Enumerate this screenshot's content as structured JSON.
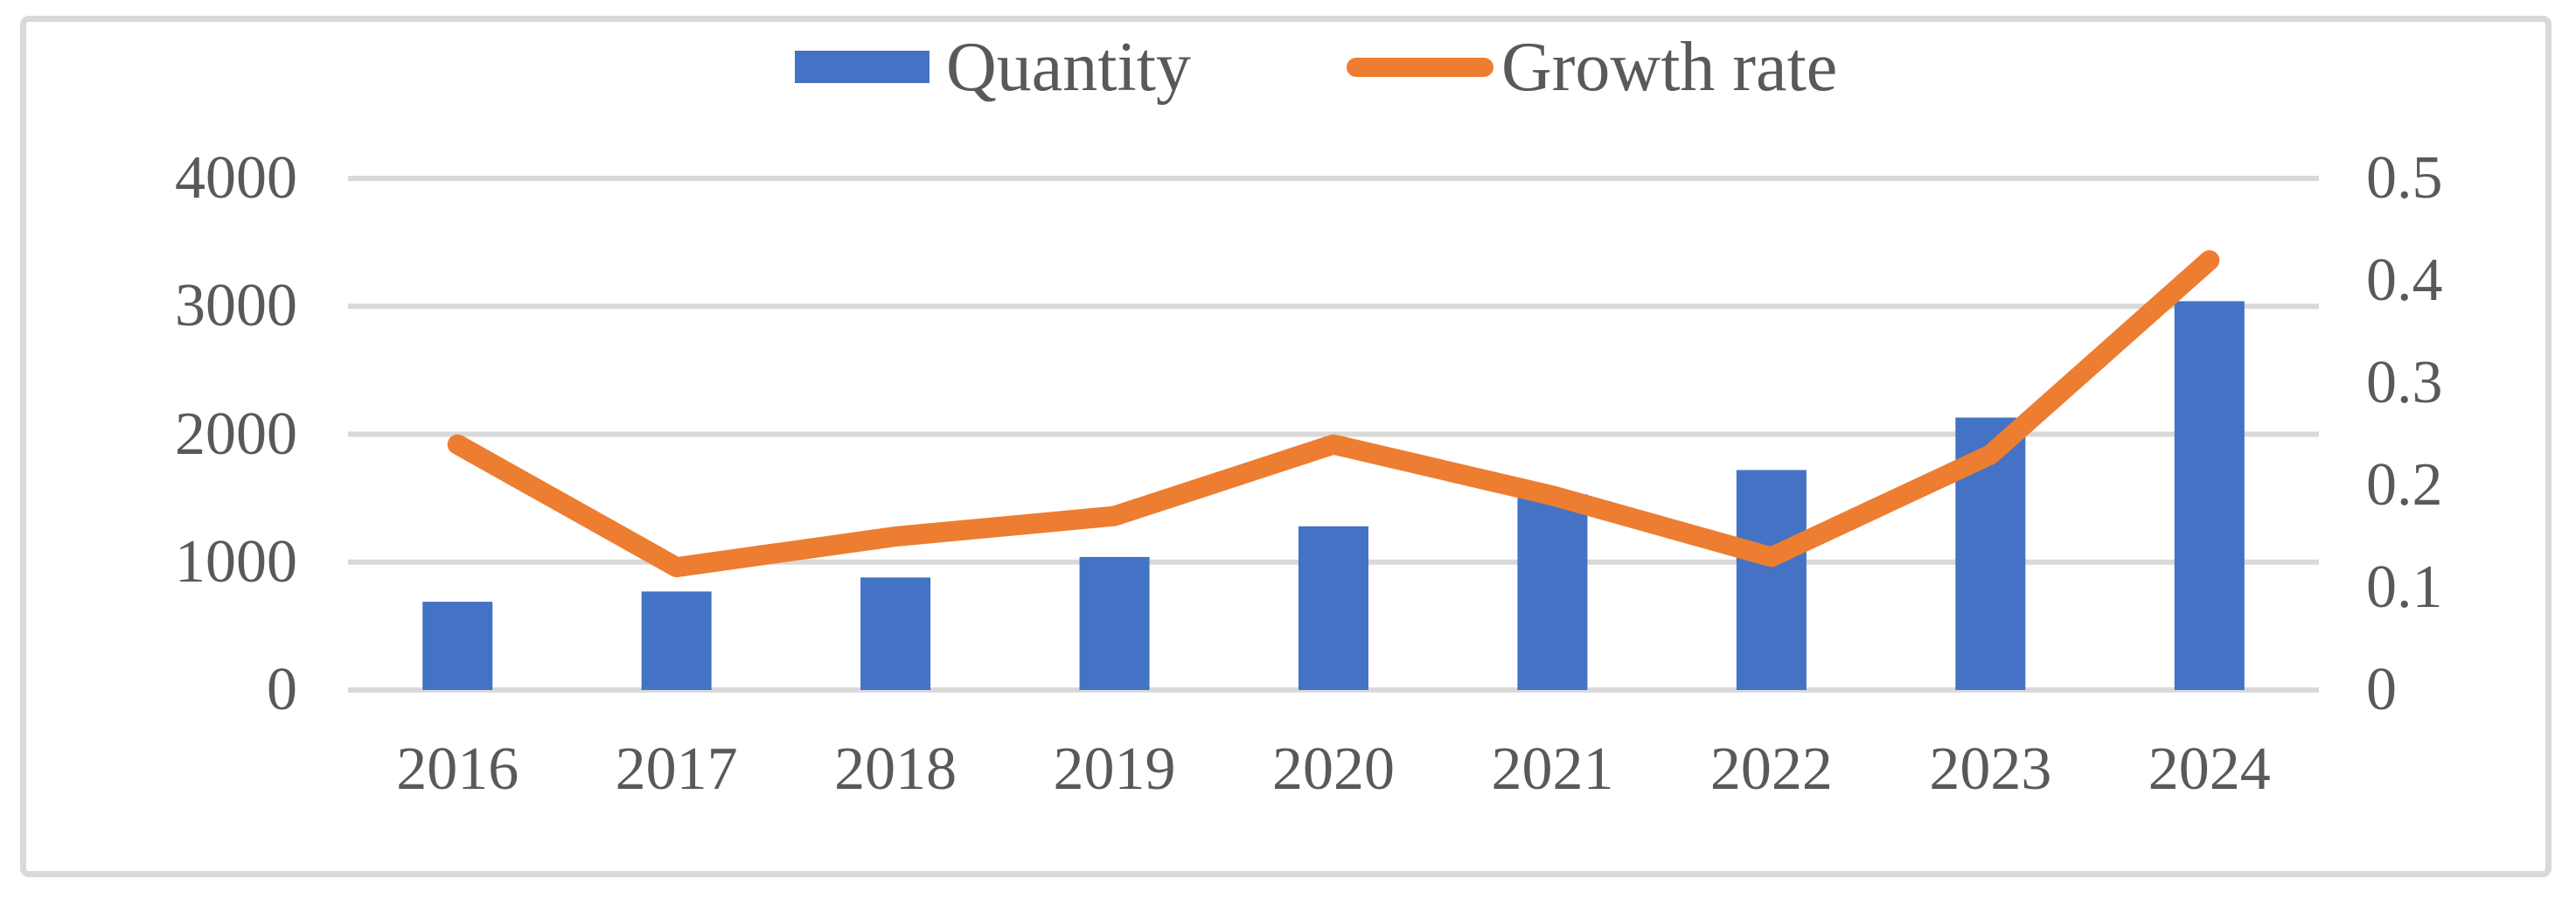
{
  "figure": {
    "background": "#FFFFFF",
    "border_color": "#D9D9D9",
    "text_color": "#595959",
    "grid_color": "#D9D9D9"
  },
  "legend": {
    "position": "top-center",
    "items": [
      {
        "label": "Quantity",
        "marker": "bar-swatch",
        "color": "#4472C4"
      },
      {
        "label": "Growth rate",
        "marker": "line-swatch",
        "color": "#ED7D31"
      }
    ]
  },
  "chart_data": {
    "type": "combo",
    "categories": [
      "2016",
      "2017",
      "2018",
      "2019",
      "2020",
      "2021",
      "2022",
      "2023",
      "2024"
    ],
    "series": [
      {
        "name": "Quantity",
        "type": "bar",
        "axis": "left",
        "color": "#4472C4",
        "values": [
          690,
          770,
          880,
          1040,
          1280,
          1530,
          1720,
          2130,
          3040
        ]
      },
      {
        "name": "Growth rate",
        "type": "line",
        "axis": "right",
        "color": "#ED7D31",
        "values": [
          0.24,
          0.12,
          0.15,
          0.17,
          0.24,
          0.19,
          0.13,
          0.23,
          0.42
        ]
      }
    ],
    "left_axis": {
      "range": [
        0,
        4000
      ],
      "ticks": [
        0,
        1000,
        2000,
        3000,
        4000
      ],
      "tick_labels": [
        "0",
        "1000",
        "2000",
        "3000",
        "4000"
      ]
    },
    "right_axis": {
      "range": [
        0,
        0.5
      ],
      "ticks": [
        0,
        0.1,
        0.2,
        0.3,
        0.4,
        0.5
      ],
      "tick_labels": [
        "0",
        "0.1",
        "0.2",
        "0.3",
        "0.4",
        "0.5"
      ]
    },
    "grid": true,
    "title": "",
    "xlabel": "",
    "ylabel": ""
  }
}
